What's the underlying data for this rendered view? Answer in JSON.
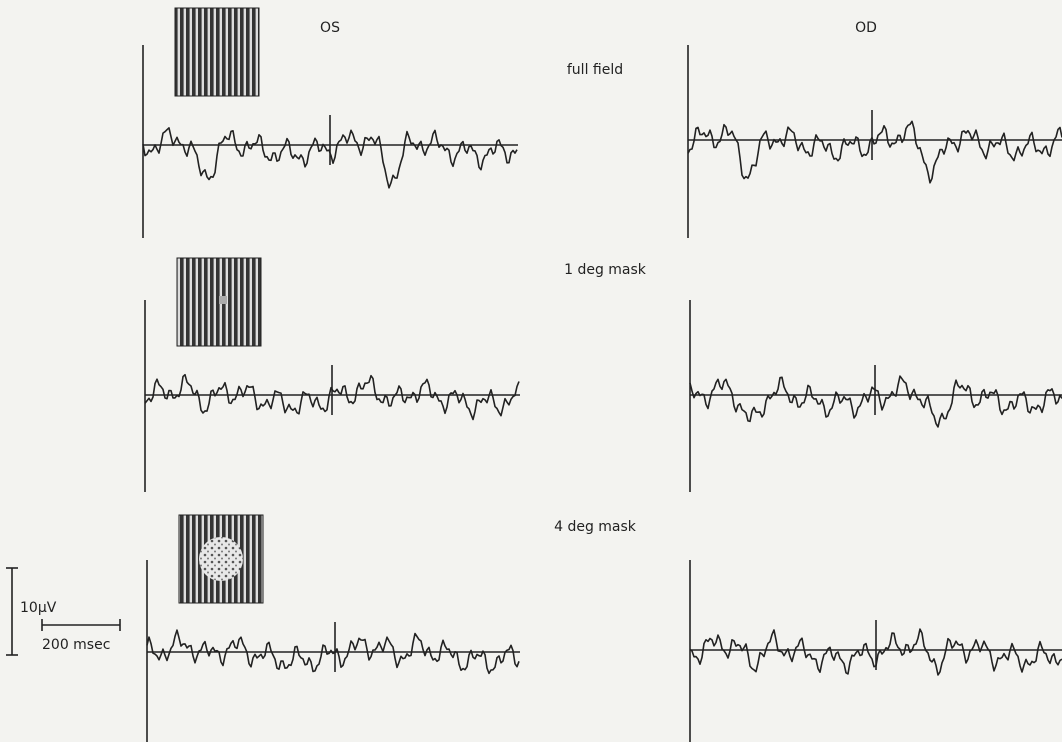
{
  "columns": {
    "left": "OS",
    "right": "OD"
  },
  "rows": [
    {
      "label": "full field"
    },
    {
      "label": "1 deg mask"
    },
    {
      "label": "4 deg mask"
    }
  ],
  "scale_bar": {
    "amplitude": "10μV",
    "time": "200 msec"
  }
}
